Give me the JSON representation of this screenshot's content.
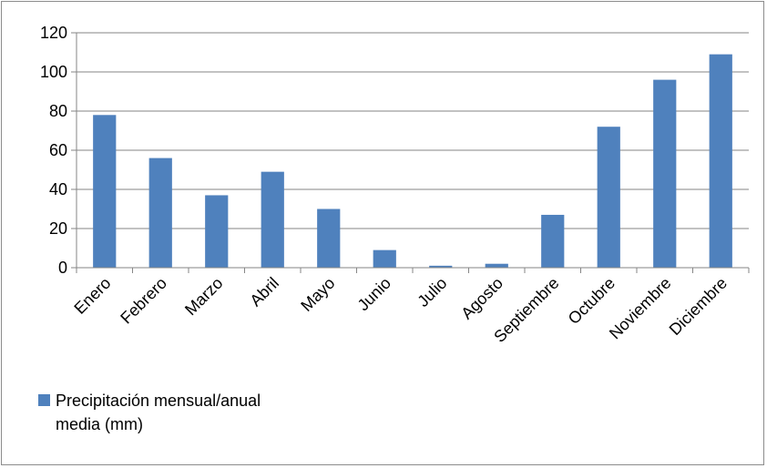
{
  "chart_data": {
    "type": "bar",
    "categories": [
      "Enero",
      "Febrero",
      "Marzo",
      "Abril",
      "Mayo",
      "Junio",
      "Julio",
      "Agosto",
      "Septiembre",
      "Octubre",
      "Noviembre",
      "Diciembre"
    ],
    "series": [
      {
        "name": "Precipitación mensual/anual media (mm)",
        "values": [
          78,
          56,
          37,
          49,
          30,
          9,
          1,
          2,
          27,
          72,
          96,
          109
        ]
      }
    ],
    "ylim": [
      0,
      120
    ],
    "yticks": [
      0,
      20,
      40,
      60,
      80,
      100,
      120
    ],
    "grid": true,
    "legend_position": "bottom-left",
    "colors": {
      "bar": "#4f81bd",
      "grid": "#868686",
      "axis": "#868686"
    }
  }
}
